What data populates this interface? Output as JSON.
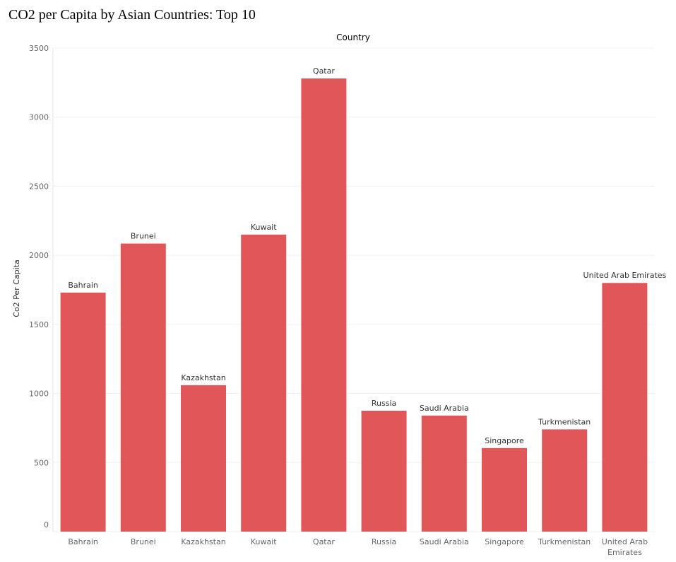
{
  "chart_data": {
    "type": "bar",
    "title": "CO2 per Capita by Asian Countries: Top 10",
    "column_header": "Country",
    "ylabel": "Co2 Per Capita",
    "xlabel": "",
    "categories": [
      "Bahrain",
      "Brunei",
      "Kazakhstan",
      "Kuwait",
      "Qatar",
      "Russia",
      "Saudi Arabia",
      "Singapore",
      "Turkmenistan",
      "United Arab Emirates"
    ],
    "x_tick_labels": [
      [
        "Bahrain"
      ],
      [
        "Brunei"
      ],
      [
        "Kazakhstan"
      ],
      [
        "Kuwait"
      ],
      [
        "Qatar"
      ],
      [
        "Russia"
      ],
      [
        "Saudi Arabia"
      ],
      [
        "Singapore"
      ],
      [
        "Turkmenistan"
      ],
      [
        "United Arab",
        "Emirates"
      ]
    ],
    "values": [
      1730,
      2085,
      1060,
      2150,
      3280,
      875,
      840,
      605,
      740,
      1800
    ],
    "bar_labels": [
      "Bahrain",
      "Brunei",
      "Kazakhstan",
      "Kuwait",
      "Qatar",
      "Russia",
      "Saudi Arabia",
      "Singapore",
      "Turkmenistan",
      "United Arab Emirates"
    ],
    "ylim": [
      0,
      3500
    ],
    "yticks": [
      0,
      500,
      1000,
      1500,
      2000,
      2500,
      3000,
      3500
    ],
    "grid": true,
    "legend": "none",
    "colors": {
      "bar": "#e15759",
      "grid": "#f0f0f0",
      "axis_text": "#666666",
      "label_text": "#333333"
    }
  }
}
